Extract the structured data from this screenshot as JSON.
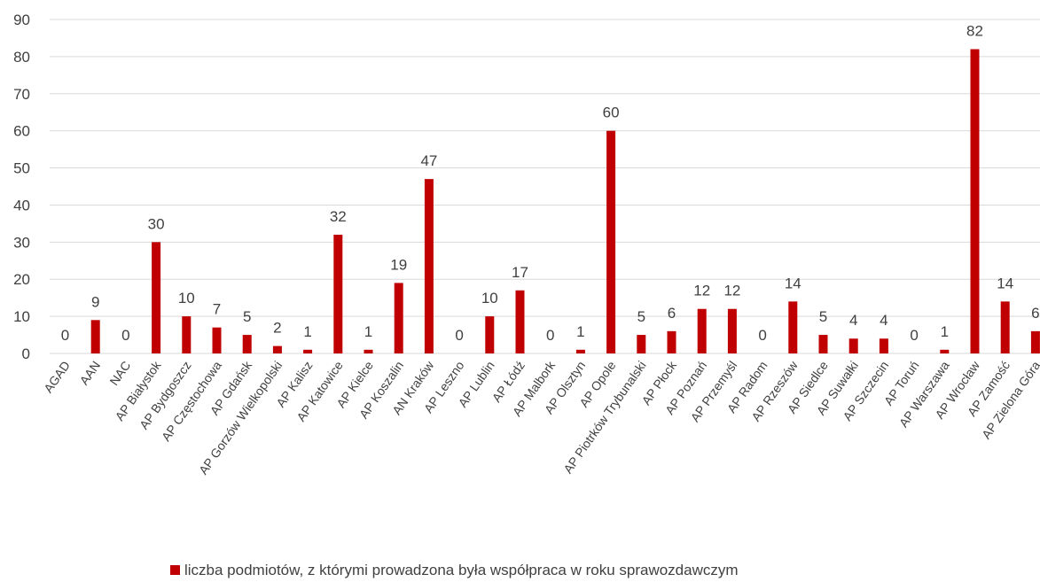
{
  "chart_data": {
    "type": "bar",
    "title": "",
    "xlabel": "",
    "ylabel": "",
    "ylim": [
      0,
      90
    ],
    "yticks": [
      0,
      10,
      20,
      30,
      40,
      50,
      60,
      70,
      80,
      90
    ],
    "grid": true,
    "legend_position": "bottom",
    "bar_color": "#c00000",
    "categories": [
      "AGAD",
      "AAN",
      "NAC",
      "AP Białystok",
      "AP Bydgoszcz",
      "AP Częstochowa",
      "AP Gdańsk",
      "AP Gorzów Wielkopolski",
      "AP Kalisz",
      "AP Katowice",
      "AP Kielce",
      "AP Koszalin",
      "AN Kraków",
      "AP Leszno",
      "AP Lublin",
      "AP Łódź",
      "AP Malbork",
      "AP Olsztyn",
      "AP Opole",
      "AP Piotrków Trybunalski",
      "AP Płock",
      "AP Poznań",
      "AP Przemyśl",
      "AP Radom",
      "AP Rzeszów",
      "AP Siedlce",
      "AP Suwałki",
      "AP Szczecin",
      "AP Toruń",
      "AP Warszawa",
      "AP Wrocław",
      "AP Zamość",
      "AP Zielona Góra"
    ],
    "series": [
      {
        "name": "liczba podmiotów, z którymi prowadzona była współpraca w roku sprawozdawczym",
        "values": [
          0,
          9,
          0,
          30,
          10,
          7,
          5,
          2,
          1,
          32,
          1,
          19,
          47,
          0,
          10,
          17,
          0,
          1,
          60,
          5,
          6,
          12,
          12,
          0,
          14,
          5,
          4,
          4,
          0,
          1,
          82,
          14,
          6
        ]
      }
    ]
  }
}
